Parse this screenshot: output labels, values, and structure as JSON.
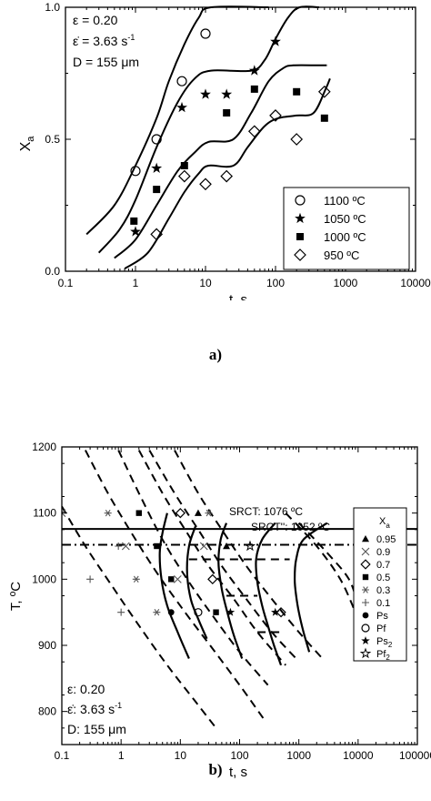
{
  "chart_data": [
    {
      "panel": "a",
      "type": "line",
      "xscale": "log",
      "xlim": [
        0.1,
        10000
      ],
      "ylim": [
        0.0,
        1.0
      ],
      "xlabel": "t, s",
      "ylabel": "X",
      "ylabel_sub": "a",
      "xticks": [
        "0.1",
        "1",
        "10",
        "100",
        "1000",
        "10000"
      ],
      "yticks": [
        "0.0",
        "0.5",
        "1.0"
      ],
      "annotations": [
        "ε = 0.20",
        "ε̇ = 3.63 s",
        "-1",
        "D = 155 μm"
      ],
      "legend": "bottom-right",
      "series": [
        {
          "name": "1100 ºC",
          "marker": "circle",
          "points": [
            [
              1.0,
              0.38
            ],
            [
              2.0,
              0.5
            ],
            [
              4.6,
              0.72
            ],
            [
              10.0,
              0.9
            ]
          ],
          "curve": [
            [
              0.2,
              0.14
            ],
            [
              0.5,
              0.25
            ],
            [
              1.0,
              0.4
            ],
            [
              2.0,
              0.58
            ],
            [
              3.0,
              0.72
            ],
            [
              5.0,
              0.86
            ],
            [
              8.0,
              0.96
            ],
            [
              12.0,
              1.0
            ],
            [
              80.0,
              1.0
            ]
          ]
        },
        {
          "name": "1050 ºC",
          "marker": "star",
          "points": [
            [
              1.0,
              0.15
            ],
            [
              2.0,
              0.39
            ],
            [
              4.6,
              0.62
            ],
            [
              10.0,
              0.67
            ],
            [
              20.0,
              0.67
            ],
            [
              50.0,
              0.76
            ],
            [
              100.0,
              0.87
            ]
          ],
          "curve": [
            [
              0.3,
              0.07
            ],
            [
              0.6,
              0.16
            ],
            [
              1.0,
              0.27
            ],
            [
              2.0,
              0.47
            ],
            [
              4.0,
              0.64
            ],
            [
              7.0,
              0.73
            ],
            [
              12.0,
              0.76
            ],
            [
              45.0,
              0.76
            ],
            [
              70.0,
              0.8
            ],
            [
              100.0,
              0.88
            ],
            [
              150.0,
              0.96
            ],
            [
              220.0,
              1.0
            ],
            [
              420.0,
              1.0
            ]
          ]
        },
        {
          "name": "1000 ºC",
          "marker": "square",
          "points": [
            [
              0.95,
              0.19
            ],
            [
              2.0,
              0.31
            ],
            [
              5.0,
              0.4
            ],
            [
              20.0,
              0.6
            ],
            [
              50.0,
              0.69
            ],
            [
              200.0,
              0.68
            ],
            [
              500.0,
              0.58
            ]
          ],
          "curve": [
            [
              0.5,
              0.05
            ],
            [
              1.0,
              0.12
            ],
            [
              2.0,
              0.25
            ],
            [
              4.0,
              0.38
            ],
            [
              7.0,
              0.45
            ],
            [
              11.0,
              0.49
            ],
            [
              25.0,
              0.5
            ],
            [
              45.0,
              0.6
            ],
            [
              80.0,
              0.72
            ],
            [
              130.0,
              0.77
            ],
            [
              180.0,
              0.78
            ],
            [
              400.0,
              0.78
            ],
            [
              560.0,
              0.78
            ]
          ],
          "curve_dashed_tail": [
            [
              400.0,
              0.78
            ],
            [
              560.0,
              0.78
            ]
          ]
        },
        {
          "name": "950 ºC",
          "marker": "diamond",
          "points": [
            [
              2.0,
              0.14
            ],
            [
              5.0,
              0.36
            ],
            [
              10.0,
              0.33
            ],
            [
              20.0,
              0.36
            ],
            [
              50.0,
              0.53
            ],
            [
              100.0,
              0.59
            ],
            [
              200.0,
              0.5
            ],
            [
              500.0,
              0.68
            ]
          ],
          "curve": [
            [
              0.7,
              0.01
            ],
            [
              1.5,
              0.07
            ],
            [
              3.0,
              0.2
            ],
            [
              5.0,
              0.3
            ],
            [
              8.0,
              0.37
            ],
            [
              11.0,
              0.4
            ],
            [
              25.0,
              0.4
            ],
            [
              40.0,
              0.47
            ],
            [
              70.0,
              0.55
            ],
            [
              110.0,
              0.58
            ],
            [
              200.0,
              0.59
            ],
            [
              350.0,
              0.6
            ],
            [
              520.0,
              0.69
            ],
            [
              600.0,
              0.73
            ]
          ]
        }
      ]
    },
    {
      "panel": "b",
      "type": "scatter",
      "xscale": "log",
      "xlim": [
        0.1,
        100000
      ],
      "ylim": [
        750,
        1200
      ],
      "xlabel": "t, s",
      "ylabel": "T, ºC",
      "xticks": [
        "0.1",
        "1",
        "10",
        "100",
        "1000",
        "10000",
        "100000"
      ],
      "yticks": [
        "800",
        "900",
        "1000",
        "1100",
        "1200"
      ],
      "annotations": [
        "ε: 0.20",
        "ε̇: 3.63 s",
        "-1",
        "D: 155 μm"
      ],
      "reference_lines": [
        {
          "label": "SRCT: 1076 ºC",
          "y": 1076,
          "style": "solid"
        },
        {
          "label": "SRCT'': 1052 ºC",
          "y": 1052,
          "style": "dash-dot"
        }
      ],
      "legend_title": "X",
      "legend_title_sub": "a",
      "legend": "right",
      "series": [
        {
          "name": "0.95",
          "marker": "triangle",
          "points": [
            [
              20.0,
              1100
            ],
            [
              60.0,
              1050
            ]
          ]
        },
        {
          "name": "0.9",
          "marker": "x",
          "points": [
            [
              0.1,
              1100
            ],
            [
              1.2,
              1050
            ],
            [
              9.0,
              1000
            ],
            [
              25.0,
              1050
            ]
          ]
        },
        {
          "name": "0.7",
          "marker": "diamond",
          "points": [
            [
              10.0,
              1100
            ],
            [
              35.0,
              1000
            ],
            [
              500.0,
              950
            ]
          ]
        },
        {
          "name": "0.5",
          "marker": "square",
          "points": [
            [
              2.0,
              1100
            ],
            [
              4.0,
              1050
            ],
            [
              7.0,
              1000
            ],
            [
              40.0,
              950
            ]
          ]
        },
        {
          "name": "0.3",
          "marker": "asterisk",
          "points": [
            [
              0.6,
              1100
            ],
            [
              1.8,
              1000
            ],
            [
              4.0,
              950
            ],
            [
              30.0,
              1100
            ]
          ]
        },
        {
          "name": "0.1",
          "marker": "plus",
          "points": [
            [
              0.3,
              1000
            ],
            [
              1.0,
              950
            ],
            [
              0.9,
              1050
            ]
          ]
        },
        {
          "name": "Ps",
          "marker": "dot",
          "points": [
            [
              7.0,
              950
            ]
          ]
        },
        {
          "name": "Pf",
          "marker": "circle",
          "points": [
            [
              20.0,
              950
            ]
          ]
        },
        {
          "name": "Ps",
          "name_sub": "2",
          "marker": "star",
          "points": [
            [
              70.0,
              950
            ],
            [
              400.0,
              950
            ]
          ]
        },
        {
          "name": "Pf",
          "name_sub": "2",
          "marker": "star-open",
          "points": [
            [
              150.0,
              1050
            ]
          ]
        }
      ],
      "solid_curves": [
        [
          [
            6.0,
            1100
          ],
          [
            5.0,
            1070
          ],
          [
            4.5,
            1040
          ],
          [
            4.8,
            1000
          ],
          [
            6.0,
            960
          ],
          [
            9.0,
            920
          ],
          [
            14.0,
            880
          ]
        ],
        [
          [
            18.0,
            1080
          ],
          [
            14.0,
            1050
          ],
          [
            13.0,
            1010
          ],
          [
            15.0,
            970
          ],
          [
            20.0,
            940
          ],
          [
            28.0,
            910
          ]
        ],
        [
          [
            60.0,
            1085
          ],
          [
            48.0,
            1060
          ],
          [
            44.0,
            1025
          ],
          [
            50.0,
            985
          ],
          [
            62.0,
            950
          ],
          [
            80.0,
            915
          ],
          [
            110.0,
            880
          ]
        ],
        [
          [
            400.0,
            1085
          ],
          [
            240.0,
            1060
          ],
          [
            190.0,
            1030
          ],
          [
            200.0,
            995
          ],
          [
            240.0,
            960
          ],
          [
            300.0,
            930
          ],
          [
            380.0,
            900
          ],
          [
            500.0,
            870
          ]
        ],
        [
          [
            3000.0,
            1085
          ],
          [
            1200.0,
            1060
          ],
          [
            900.0,
            1030
          ],
          [
            850.0,
            1000
          ],
          [
            900.0,
            975
          ],
          [
            1000.0,
            950
          ],
          [
            1200.0,
            920
          ],
          [
            1500.0,
            890
          ]
        ]
      ],
      "dashed_curves": [
        [
          [
            0.1,
            1110
          ],
          [
            0.25,
            1050
          ],
          [
            0.7,
            990
          ],
          [
            2.0,
            930
          ],
          [
            6.0,
            870
          ],
          [
            18.0,
            815
          ],
          [
            40.0,
            775
          ]
        ],
        [
          [
            0.25,
            1195
          ],
          [
            0.6,
            1130
          ],
          [
            1.5,
            1070
          ],
          [
            4.0,
            1010
          ],
          [
            12.0,
            950
          ],
          [
            35.0,
            895
          ],
          [
            100.0,
            840
          ],
          [
            250.0,
            790
          ]
        ],
        [
          [
            0.9,
            1195
          ],
          [
            2.0,
            1130
          ],
          [
            5.0,
            1060
          ],
          [
            13.0,
            1000
          ],
          [
            35.0,
            945
          ],
          [
            100.0,
            890
          ],
          [
            300.0,
            840
          ]
        ],
        [
          [
            2.0,
            1195
          ],
          [
            5.0,
            1130
          ],
          [
            12.0,
            1075
          ],
          [
            30.0,
            1020
          ],
          [
            80.0,
            970
          ],
          [
            200.0,
            920
          ],
          [
            600.0,
            870
          ]
        ],
        [
          [
            3.0,
            1195
          ],
          [
            8.0,
            1130
          ],
          [
            20.0,
            1075
          ],
          [
            50.0,
            1020
          ],
          [
            130.0,
            970
          ],
          [
            350.0,
            920
          ],
          [
            900.0,
            880
          ]
        ],
        [
          [
            8.0,
            1195
          ],
          [
            20.0,
            1130
          ],
          [
            50.0,
            1075
          ],
          [
            130.0,
            1020
          ],
          [
            350.0,
            970
          ],
          [
            1000.0,
            920
          ],
          [
            2500.0,
            880
          ]
        ],
        [
          [
            600.0,
            1100
          ],
          [
            2000.0,
            1050
          ],
          [
            5000.0,
            1000
          ],
          [
            9000.0,
            950
          ]
        ],
        [
          [
            1000.0,
            1085
          ],
          [
            3000.0,
            1040
          ],
          [
            7000.0,
            1000
          ],
          [
            10000.0,
            960
          ]
        ]
      ],
      "dashed_plateaus": [
        [
          [
            14.0,
            1030
          ],
          [
            700.0,
            1030
          ]
        ],
        [
          [
            60.0,
            975
          ],
          [
            200.0,
            975
          ]
        ],
        [
          [
            200.0,
            920
          ],
          [
            500.0,
            920
          ]
        ]
      ]
    }
  ],
  "captions": {
    "a": "a)",
    "b": "b)"
  }
}
